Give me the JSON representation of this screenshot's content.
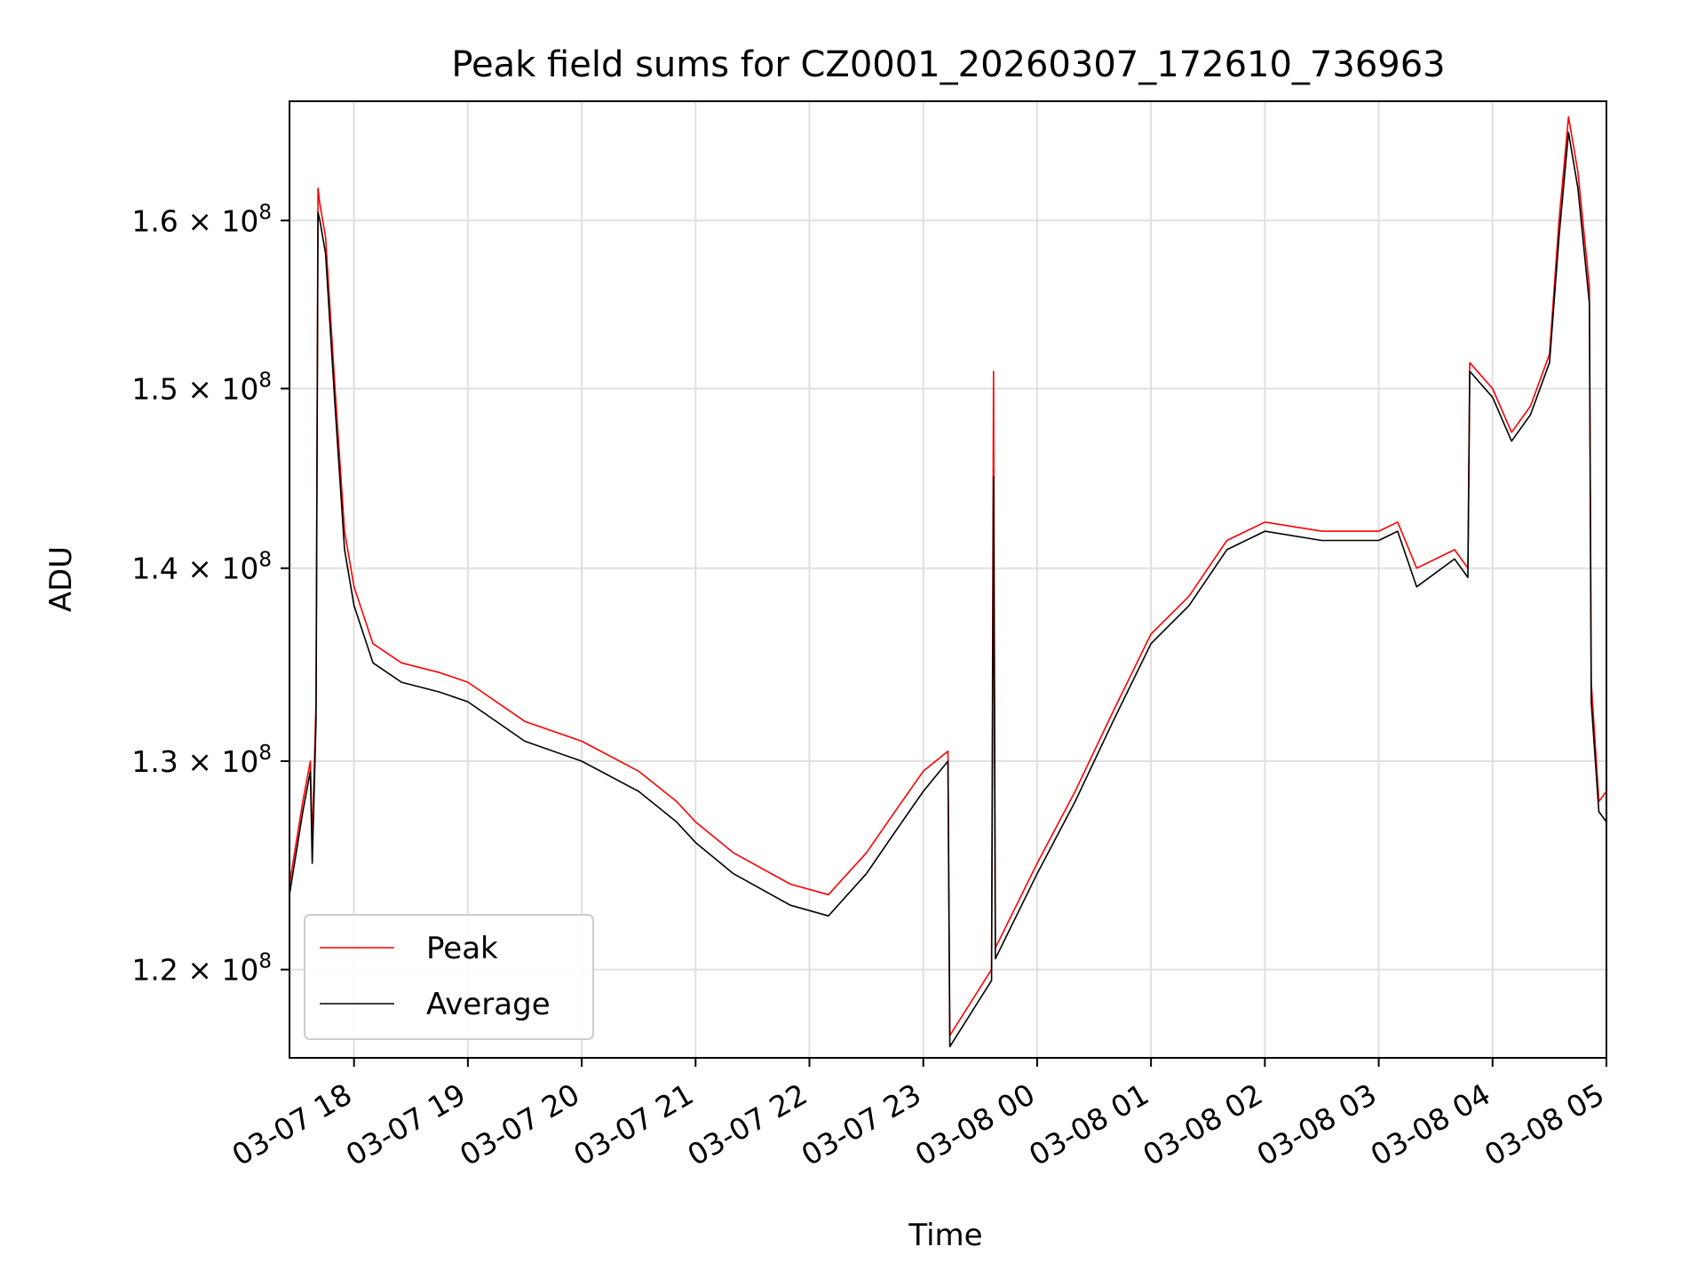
{
  "chart_data": {
    "type": "line",
    "title": "Peak field sums for CZ0001_20260307_172610_736963",
    "xlabel": "Time",
    "ylabel": "ADU",
    "yscale": "log",
    "xlim": [
      "2026-03-07 17:26",
      "2026-03-08 05:00"
    ],
    "ylim": [
      116000000,
      167500000
    ],
    "x_ticks": [
      "03-07 18",
      "03-07 19",
      "03-07 20",
      "03-07 21",
      "03-07 22",
      "03-07 23",
      "03-08 00",
      "03-08 01",
      "03-08 02",
      "03-08 03",
      "03-08 04",
      "03-08 05"
    ],
    "y_ticks": [
      {
        "value": 120000000,
        "mantissa": "1.2",
        "exp": "8"
      },
      {
        "value": 130000000,
        "mantissa": "1.3",
        "exp": "8"
      },
      {
        "value": 140000000,
        "mantissa": "1.4",
        "exp": "8"
      },
      {
        "value": 150000000,
        "mantissa": "1.5",
        "exp": "8"
      },
      {
        "value": 160000000,
        "mantissa": "1.6",
        "exp": "8"
      }
    ],
    "grid": true,
    "legend_position": "lower-left",
    "series": [
      {
        "name": "Peak",
        "color": "#ff0000",
        "x": [
          "2026-03-07 17:26",
          "2026-03-07 17:33",
          "2026-03-07 17:37",
          "2026-03-07 17:38",
          "2026-03-07 17:40",
          "2026-03-07 17:41",
          "2026-03-07 17:42",
          "2026-03-07 17:45",
          "2026-03-07 17:50",
          "2026-03-07 17:55",
          "2026-03-07 18:00",
          "2026-03-07 18:10",
          "2026-03-07 18:25",
          "2026-03-07 18:45",
          "2026-03-07 19:00",
          "2026-03-07 19:30",
          "2026-03-07 20:00",
          "2026-03-07 20:30",
          "2026-03-07 20:50",
          "2026-03-07 21:00",
          "2026-03-07 21:20",
          "2026-03-07 21:50",
          "2026-03-07 22:10",
          "2026-03-07 22:30",
          "2026-03-07 22:45",
          "2026-03-07 23:00",
          "2026-03-07 23:13",
          "2026-03-07 23:14",
          "2026-03-07 23:36",
          "2026-03-07 23:37",
          "2026-03-07 23:38",
          "2026-03-08 00:00",
          "2026-03-08 00:20",
          "2026-03-08 00:40",
          "2026-03-08 01:00",
          "2026-03-08 01:20",
          "2026-03-08 01:40",
          "2026-03-08 02:00",
          "2026-03-08 02:30",
          "2026-03-08 03:00",
          "2026-03-08 03:10",
          "2026-03-08 03:20",
          "2026-03-08 03:40",
          "2026-03-08 03:47",
          "2026-03-08 03:48",
          "2026-03-08 04:00",
          "2026-03-08 04:10",
          "2026-03-08 04:20",
          "2026-03-08 04:30",
          "2026-03-08 04:35",
          "2026-03-08 04:40",
          "2026-03-08 04:45",
          "2026-03-08 04:51",
          "2026-03-08 04:52",
          "2026-03-08 04:56",
          "2026-03-08 05:00"
        ],
        "y": [
          124000000,
          128000000,
          130000000,
          126000000,
          133000000,
          162000000,
          161000000,
          159000000,
          150000000,
          142000000,
          139000000,
          136000000,
          135000000,
          134500000,
          134000000,
          132000000,
          131000000,
          129500000,
          128000000,
          127000000,
          125500000,
          124000000,
          123500000,
          125500000,
          127500000,
          129500000,
          130500000,
          117000000,
          120000000,
          151000000,
          121000000,
          125000000,
          128500000,
          132500000,
          136500000,
          138500000,
          141500000,
          142500000,
          142000000,
          142000000,
          142500000,
          140000000,
          141000000,
          140000000,
          151500000,
          150000000,
          147500000,
          149000000,
          152000000,
          160000000,
          166500000,
          163000000,
          156000000,
          134000000,
          128000000,
          128500000
        ]
      },
      {
        "name": "Average",
        "color": "#000000",
        "x": [
          "2026-03-07 17:26",
          "2026-03-07 17:33",
          "2026-03-07 17:37",
          "2026-03-07 17:38",
          "2026-03-07 17:40",
          "2026-03-07 17:41",
          "2026-03-07 17:42",
          "2026-03-07 17:45",
          "2026-03-07 17:50",
          "2026-03-07 17:55",
          "2026-03-07 18:00",
          "2026-03-07 18:10",
          "2026-03-07 18:25",
          "2026-03-07 18:45",
          "2026-03-07 19:00",
          "2026-03-07 19:30",
          "2026-03-07 20:00",
          "2026-03-07 20:30",
          "2026-03-07 20:50",
          "2026-03-07 21:00",
          "2026-03-07 21:20",
          "2026-03-07 21:50",
          "2026-03-07 22:10",
          "2026-03-07 22:30",
          "2026-03-07 22:45",
          "2026-03-07 23:00",
          "2026-03-07 23:13",
          "2026-03-07 23:14",
          "2026-03-07 23:36",
          "2026-03-07 23:37",
          "2026-03-07 23:38",
          "2026-03-08 00:00",
          "2026-03-08 00:20",
          "2026-03-08 00:40",
          "2026-03-08 01:00",
          "2026-03-08 01:20",
          "2026-03-08 01:40",
          "2026-03-08 02:00",
          "2026-03-08 02:30",
          "2026-03-08 03:00",
          "2026-03-08 03:10",
          "2026-03-08 03:20",
          "2026-03-08 03:40",
          "2026-03-08 03:47",
          "2026-03-08 03:48",
          "2026-03-08 04:00",
          "2026-03-08 04:10",
          "2026-03-08 04:20",
          "2026-03-08 04:30",
          "2026-03-08 04:35",
          "2026-03-08 04:40",
          "2026-03-08 04:45",
          "2026-03-08 04:51",
          "2026-03-08 04:52",
          "2026-03-08 04:56",
          "2026-03-08 05:00"
        ],
        "y": [
          123500000,
          127500000,
          129500000,
          125000000,
          132000000,
          160500000,
          160000000,
          158000000,
          149000000,
          141000000,
          138000000,
          135000000,
          134000000,
          133500000,
          133000000,
          131000000,
          130000000,
          128500000,
          127000000,
          126000000,
          124500000,
          123000000,
          122500000,
          124500000,
          126500000,
          128500000,
          130000000,
          116500000,
          119500000,
          145000000,
          120500000,
          124500000,
          128000000,
          132000000,
          136000000,
          138000000,
          141000000,
          142000000,
          141500000,
          141500000,
          142000000,
          139000000,
          140500000,
          139500000,
          151000000,
          149500000,
          147000000,
          148500000,
          151500000,
          159000000,
          165500000,
          162000000,
          155000000,
          133000000,
          127500000,
          127000000
        ]
      }
    ]
  }
}
